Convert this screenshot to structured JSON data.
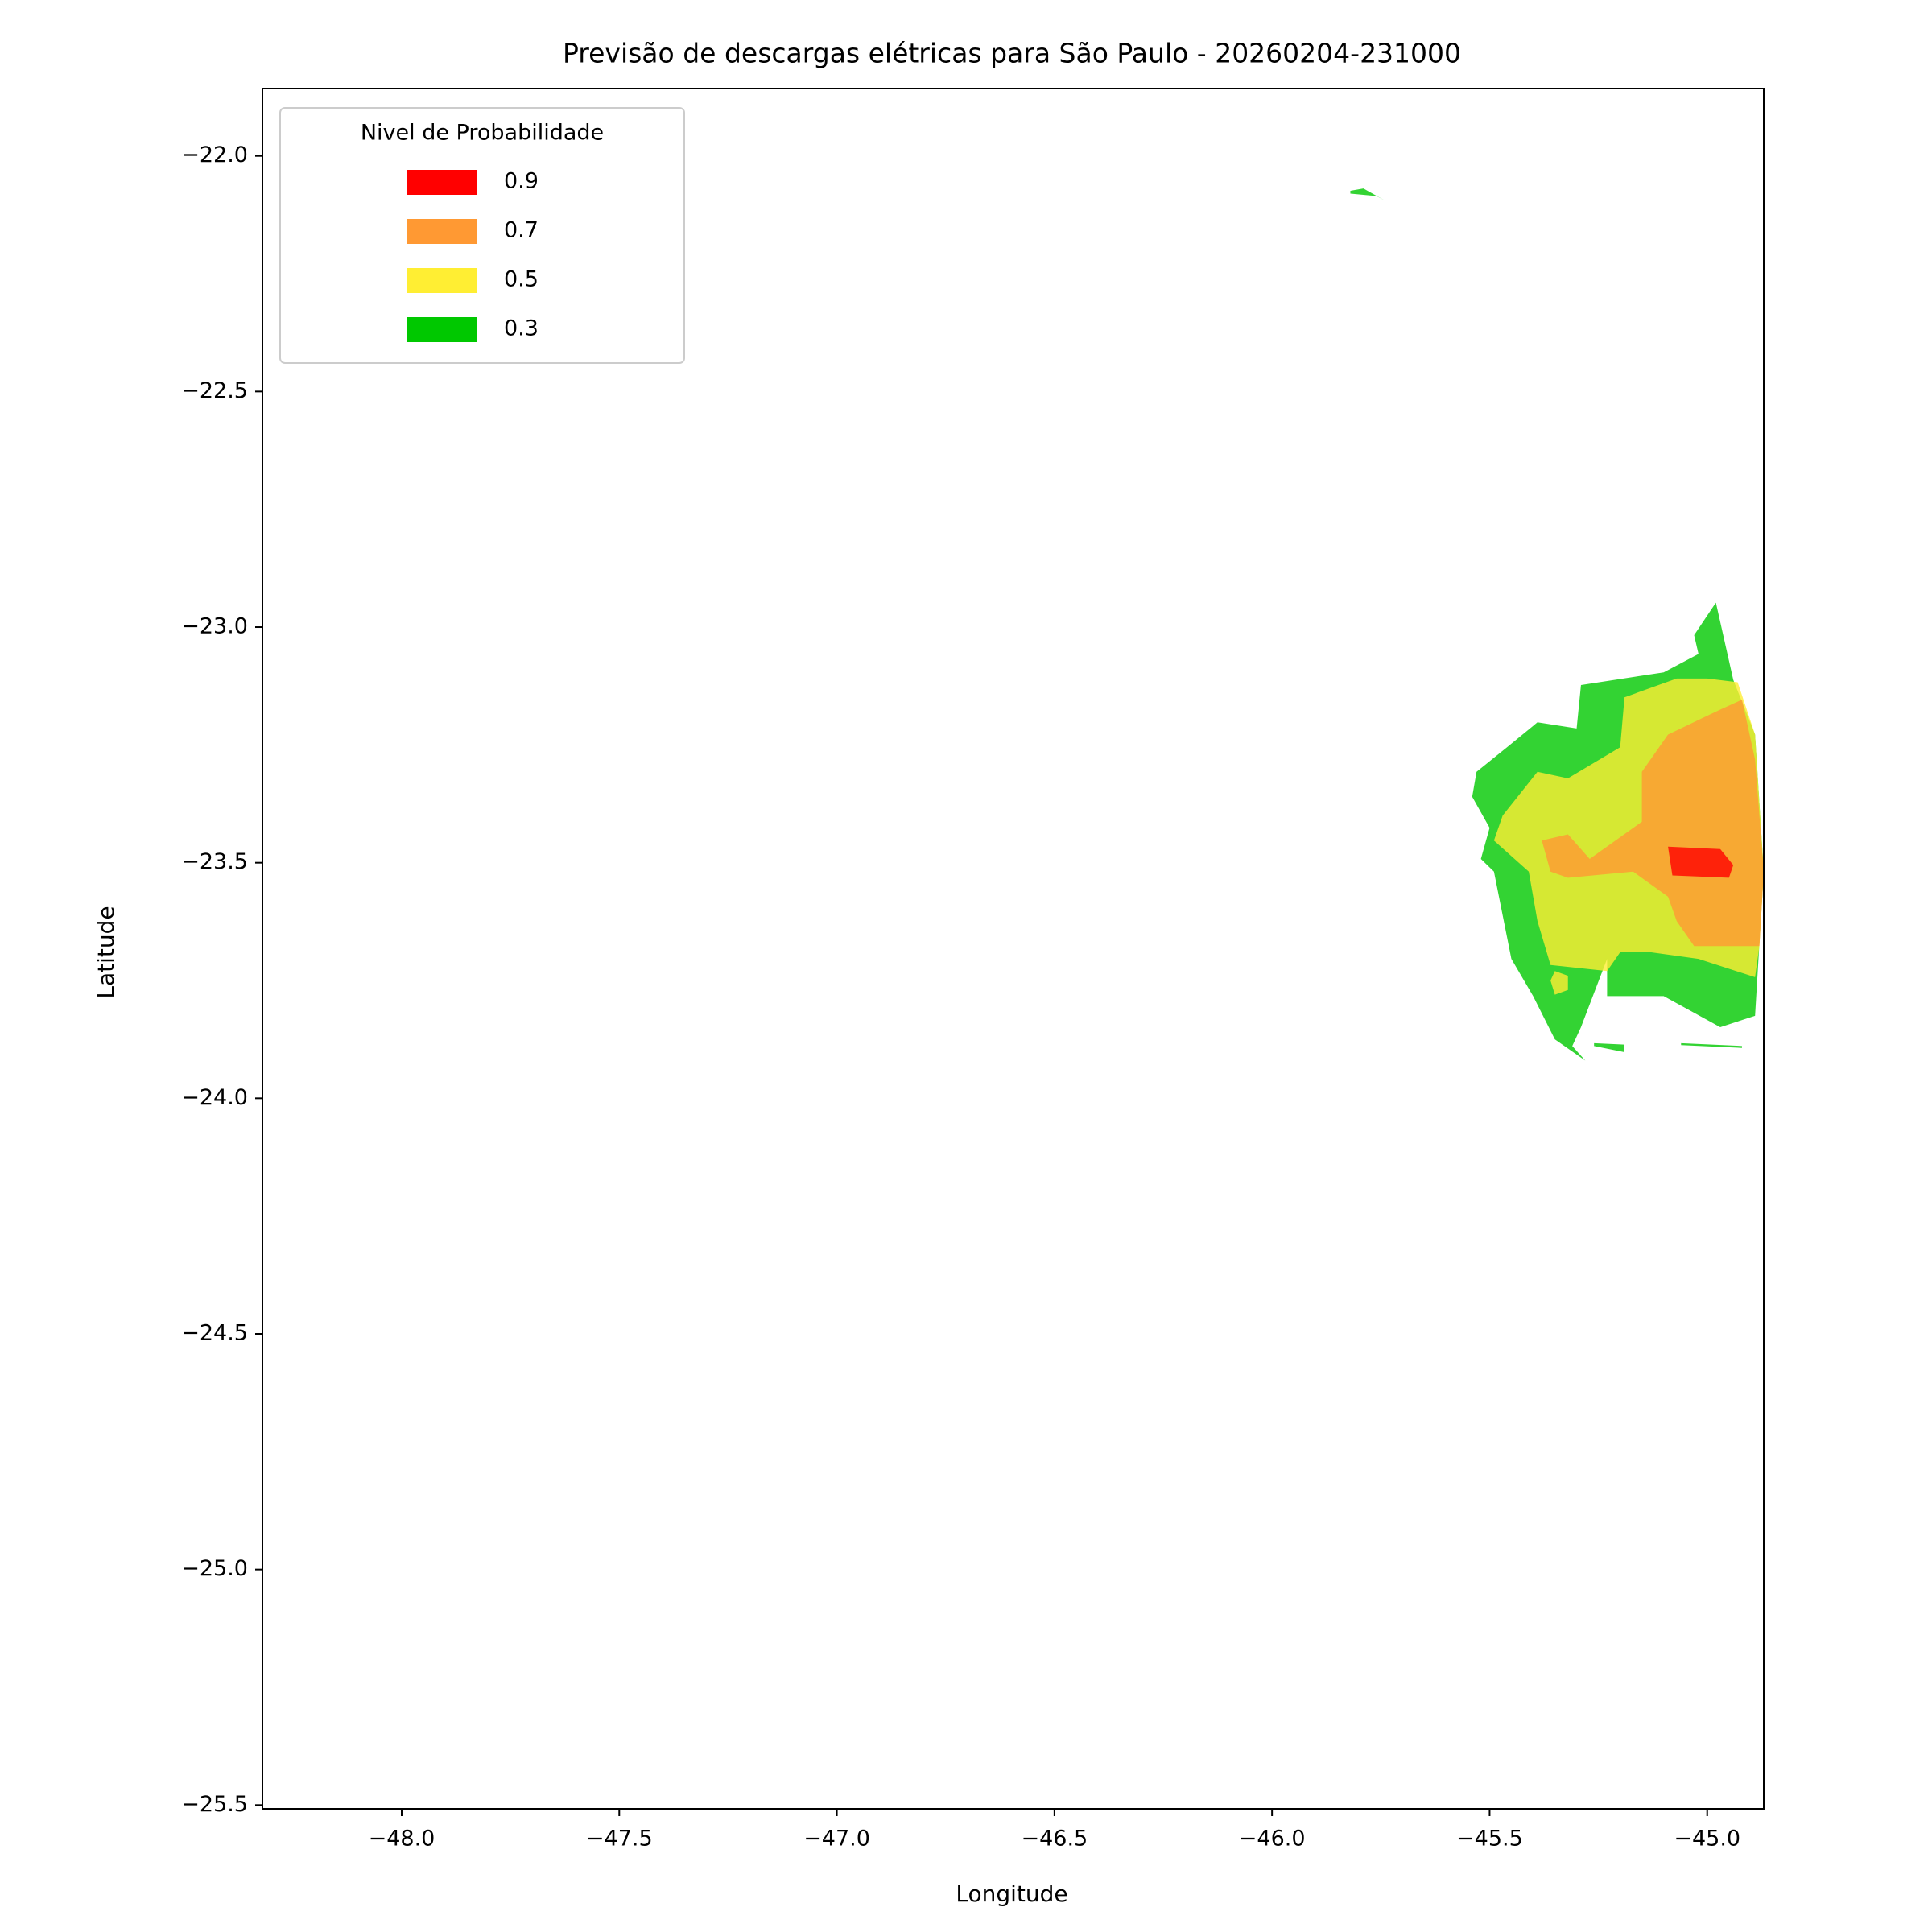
{
  "chart_data": {
    "type": "contour",
    "title": "Previsão de descargas elétricas para São Paulo - 20260204-231000",
    "xlabel": "Longitude",
    "ylabel": "Latitude",
    "xlim": [
      -48.32,
      -44.87
    ],
    "ylim": [
      -25.508,
      -21.857
    ],
    "xticks": [
      {
        "value": -48,
        "label": "−48.0"
      },
      {
        "value": -47.5,
        "label": "−47.5"
      },
      {
        "value": -47,
        "label": "−47.0"
      },
      {
        "value": -46.5,
        "label": "−46.5"
      },
      {
        "value": -46,
        "label": "−46.0"
      },
      {
        "value": -45.5,
        "label": "−45.5"
      },
      {
        "value": -45,
        "label": "−45.0"
      }
    ],
    "yticks": [
      {
        "value": -22,
        "label": "−22.0"
      },
      {
        "value": -22.5,
        "label": "−22.5"
      },
      {
        "value": -23,
        "label": "−23.0"
      },
      {
        "value": -23.5,
        "label": "−23.5"
      },
      {
        "value": -24,
        "label": "−24.0"
      },
      {
        "value": -24.5,
        "label": "−24.5"
      },
      {
        "value": -25,
        "label": "−25.0"
      },
      {
        "value": -25.5,
        "label": "−25.5"
      }
    ],
    "legend_title": "Nivel de Probabilidade",
    "legend_loc": "upper left",
    "alpha": 0.8,
    "series": [
      {
        "name": "0.9",
        "color": "#ff0000",
        "polygons": [
          [
            [
              -45.09,
              -23.466
            ],
            [
              -44.97,
              -23.471
            ],
            [
              -44.94,
              -23.505
            ],
            [
              -44.95,
              -23.532
            ],
            [
              -45.08,
              -23.527
            ]
          ]
        ]
      },
      {
        "name": "0.7",
        "color": "#ff9933",
        "polygons": [
          [
            [
              -44.92,
              -23.154
            ],
            [
              -44.89,
              -23.281
            ],
            [
              -44.87,
              -23.519
            ],
            [
              -44.88,
              -23.677
            ],
            [
              -45.03,
              -23.677
            ],
            [
              -45.07,
              -23.624
            ],
            [
              -45.09,
              -23.572
            ],
            [
              -45.17,
              -23.519
            ],
            [
              -45.32,
              -23.532
            ],
            [
              -45.36,
              -23.519
            ],
            [
              -45.38,
              -23.453
            ],
            [
              -45.32,
              -23.44
            ],
            [
              -45.27,
              -23.492
            ],
            [
              -45.15,
              -23.413
            ],
            [
              -45.15,
              -23.307
            ],
            [
              -45.09,
              -23.228
            ],
            [
              -44.97,
              -23.175
            ]
          ]
        ]
      },
      {
        "name": "0.5",
        "color": "#ffee33",
        "polygons": [
          [
            [
              -45.0,
              -23.109
            ],
            [
              -44.93,
              -23.117
            ],
            [
              -44.89,
              -23.228
            ],
            [
              -44.87,
              -23.519
            ],
            [
              -44.88,
              -23.677
            ],
            [
              -44.89,
              -23.743
            ],
            [
              -45.02,
              -23.704
            ],
            [
              -45.13,
              -23.69
            ],
            [
              -45.2,
              -23.69
            ],
            [
              -45.23,
              -23.73
            ],
            [
              -45.36,
              -23.717
            ],
            [
              -45.39,
              -23.624
            ],
            [
              -45.41,
              -23.519
            ],
            [
              -45.49,
              -23.453
            ],
            [
              -45.47,
              -23.4
            ],
            [
              -45.39,
              -23.307
            ],
            [
              -45.32,
              -23.321
            ],
            [
              -45.2,
              -23.255
            ],
            [
              -45.19,
              -23.149
            ],
            [
              -45.07,
              -23.109
            ]
          ],
          [
            [
              -45.35,
              -23.73
            ],
            [
              -45.32,
              -23.74
            ],
            [
              -45.32,
              -23.77
            ],
            [
              -45.35,
              -23.78
            ],
            [
              -45.36,
              -23.75
            ]
          ]
        ]
      },
      {
        "name": "0.3",
        "color": "#00c800",
        "polygons": [
          [
            [
              -44.98,
              -22.948
            ],
            [
              -44.94,
              -23.112
            ],
            [
              -44.89,
              -23.228
            ],
            [
              -44.87,
              -23.519
            ],
            [
              -44.89,
              -23.825
            ],
            [
              -44.97,
              -23.849
            ],
            [
              -45.1,
              -23.783
            ],
            [
              -45.23,
              -23.783
            ],
            [
              -45.23,
              -23.704
            ],
            [
              -45.29,
              -23.849
            ],
            [
              -45.31,
              -23.889
            ],
            [
              -45.28,
              -23.92
            ],
            [
              -45.35,
              -23.875
            ],
            [
              -45.4,
              -23.783
            ],
            [
              -45.45,
              -23.704
            ],
            [
              -45.49,
              -23.519
            ],
            [
              -45.52,
              -23.492
            ],
            [
              -45.5,
              -23.426
            ],
            [
              -45.54,
              -23.36
            ],
            [
              -45.53,
              -23.307
            ],
            [
              -45.46,
              -23.255
            ],
            [
              -45.39,
              -23.202
            ],
            [
              -45.3,
              -23.215
            ],
            [
              -45.29,
              -23.123
            ],
            [
              -45.1,
              -23.096
            ],
            [
              -45.02,
              -23.057
            ],
            [
              -45.03,
              -23.017
            ]
          ],
          [
            [
              -45.82,
              -22.074
            ],
            [
              -45.79,
              -22.069
            ],
            [
              -45.74,
              -22.095
            ],
            [
              -45.76,
              -22.085
            ],
            [
              -45.82,
              -22.08
            ]
          ],
          [
            [
              -45.26,
              -23.883
            ],
            [
              -45.19,
              -23.886
            ],
            [
              -45.19,
              -23.902
            ],
            [
              -45.26,
              -23.889
            ]
          ],
          [
            [
              -45.06,
              -23.883
            ],
            [
              -44.92,
              -23.889
            ],
            [
              -44.92,
              -23.893
            ],
            [
              -45.06,
              -23.887
            ]
          ]
        ]
      }
    ]
  }
}
